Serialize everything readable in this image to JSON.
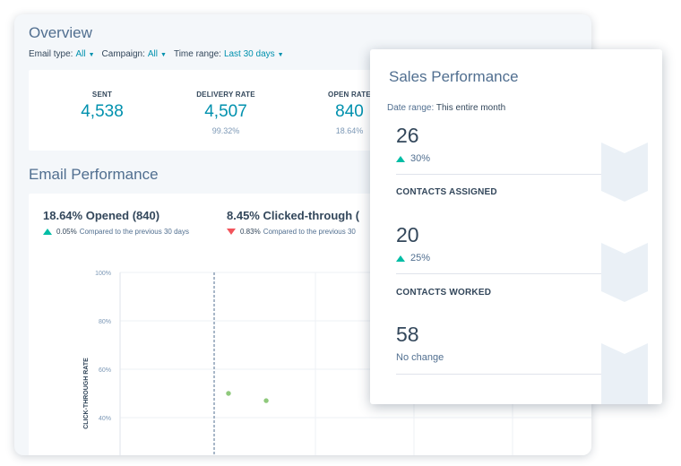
{
  "overview": {
    "title": "Overview",
    "filters": [
      {
        "label": "Email type:",
        "value": "All"
      },
      {
        "label": "Campaign:",
        "value": "All"
      },
      {
        "label": "Time range:",
        "value": "Last 30 days"
      }
    ],
    "stats": [
      {
        "label": "SENT",
        "value": "4,538",
        "sub": ""
      },
      {
        "label": "DELIVERY RATE",
        "value": "4,507",
        "sub": "99.32%"
      },
      {
        "label": "OPEN RATE",
        "value": "840",
        "sub": "18.64%"
      }
    ]
  },
  "email_performance": {
    "title": "Email Performance",
    "metrics": [
      {
        "headline": "18.64% Opened (840)",
        "change": "0.05%",
        "compare": "Compared to the previous 30 days",
        "direction": "up"
      },
      {
        "headline": "8.45% Clicked-through (",
        "change": "0.83%",
        "compare": "Compared to the previous 30",
        "direction": "down"
      }
    ]
  },
  "chart_data": {
    "type": "scatter",
    "ylabel": "CLICK-THROUGH RATE",
    "y_ticks": [
      "100%",
      "80%",
      "60%",
      "40%"
    ],
    "ylim": [
      30,
      100
    ],
    "points": [
      {
        "x": 0.23,
        "y": 50
      },
      {
        "x": 0.31,
        "y": 47
      }
    ],
    "grid": true,
    "point_color": "#8fc97c"
  },
  "sales_performance": {
    "title": "Sales Performance",
    "date_range_label": "Date range:",
    "date_range_value": "This entire month",
    "kpis": [
      {
        "value": "26",
        "change": "30%",
        "direction": "up",
        "label": "CONTACTS ASSIGNED"
      },
      {
        "value": "20",
        "change": "25%",
        "direction": "up",
        "label": "CONTACTS WORKED"
      },
      {
        "value": "58",
        "change": "No change",
        "direction": "none",
        "label": ""
      }
    ]
  },
  "colors": {
    "accent": "#0091ae",
    "positive": "#00bda5",
    "negative": "#f2545b",
    "text_dark": "#33475b",
    "text_muted": "#516f90"
  }
}
